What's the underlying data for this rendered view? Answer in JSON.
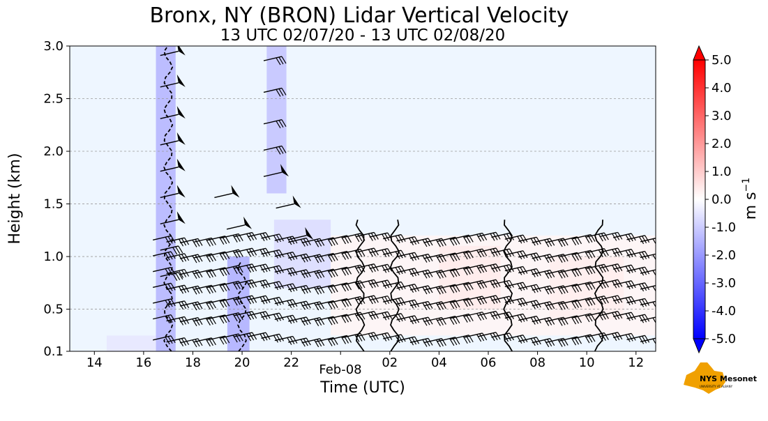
{
  "chart_data": {
    "type": "heatmap",
    "title": "Bronx, NY (BRON) Lidar Vertical Velocity",
    "subtitle": "13 UTC 02/07/20 - 13 UTC 02/08/20",
    "xlabel": "Time (UTC)",
    "ylabel": "Height (km)",
    "x_unit_hours_since_start": "hours from 13 UTC 02/07/20",
    "xlim": [
      13,
      36.8
    ],
    "ylim": [
      0.1,
      3.0
    ],
    "x_ticks": [
      {
        "value": 14,
        "label": "14"
      },
      {
        "value": 16,
        "label": "16"
      },
      {
        "value": 18,
        "label": "18"
      },
      {
        "value": 20,
        "label": "20"
      },
      {
        "value": 22,
        "label": "22"
      },
      {
        "value": 26,
        "label": "02"
      },
      {
        "value": 28,
        "label": "04"
      },
      {
        "value": 30,
        "label": "06"
      },
      {
        "value": 32,
        "label": "08"
      },
      {
        "value": 34,
        "label": "10"
      },
      {
        "value": 36,
        "label": "12"
      }
    ],
    "x_date_label": {
      "value": 24,
      "label": "Feb-08"
    },
    "y_ticks": [
      {
        "value": 0.1,
        "label": "0.1"
      },
      {
        "value": 0.5,
        "label": "0.5"
      },
      {
        "value": 1.0,
        "label": "1.0"
      },
      {
        "value": 1.5,
        "label": "1.5"
      },
      {
        "value": 2.0,
        "label": "2.0"
      },
      {
        "value": 2.5,
        "label": "2.5"
      },
      {
        "value": 3.0,
        "label": "3.0"
      }
    ],
    "grid": {
      "horizontal_dashed": true
    },
    "colorbar": {
      "label": "m s",
      "label_superscript": "−1",
      "range": [
        -5.0,
        5.0
      ],
      "extend": "both",
      "tick_labels": [
        "-5.0",
        "-4.0",
        "-3.0",
        "-2.0",
        "-1.0",
        "0.0",
        "1.0",
        "2.0",
        "3.0",
        "4.0",
        "5.0"
      ],
      "colors": {
        "min": "#0000ff",
        "zero": "#ffffff",
        "max": "#ff0000"
      }
    },
    "background_color": "#eef6ff",
    "velocity_regions": [
      {
        "x0": 16.5,
        "x1": 17.3,
        "y0": 0.1,
        "y1": 3.0,
        "value": -1.5
      },
      {
        "x0": 19.4,
        "x1": 20.3,
        "y0": 0.1,
        "y1": 1.0,
        "value": -1.6
      },
      {
        "x0": 21.0,
        "x1": 21.8,
        "y0": 1.6,
        "y1": 3.0,
        "value": -1.2
      },
      {
        "x0": 21.3,
        "x1": 23.6,
        "y0": 0.7,
        "y1": 1.35,
        "value": -0.7
      },
      {
        "x0": 14.5,
        "x1": 16.5,
        "y0": 0.1,
        "y1": 0.25,
        "value": -0.5
      },
      {
        "x0": 23.6,
        "x1": 36.8,
        "y0": 0.25,
        "y1": 1.2,
        "value": 0.2
      },
      {
        "x0": 28.0,
        "x1": 30.5,
        "y0": 0.5,
        "y1": 1.1,
        "value": 0.4
      },
      {
        "x0": 32.5,
        "x1": 35.5,
        "y0": 0.4,
        "y1": 1.0,
        "value": 0.35
      }
    ],
    "wind_barbs": [
      {
        "x": 17.3,
        "y": 2.95,
        "flag": true
      },
      {
        "x": 17.3,
        "y": 2.65,
        "flag": true
      },
      {
        "x": 17.3,
        "y": 2.35,
        "flag": true
      },
      {
        "x": 17.3,
        "y": 2.1,
        "flag": true
      },
      {
        "x": 17.3,
        "y": 1.85,
        "flag": true
      },
      {
        "x": 17.3,
        "y": 1.6,
        "flag": true
      },
      {
        "x": 17.3,
        "y": 1.35,
        "flag": true
      },
      {
        "x": 17.3,
        "y": 1.1,
        "flag": false
      },
      {
        "x": 17.3,
        "y": 0.85,
        "flag": false
      },
      {
        "x": 21.5,
        "y": 2.9,
        "flag": false
      },
      {
        "x": 21.5,
        "y": 2.6,
        "flag": false
      },
      {
        "x": 21.5,
        "y": 2.3,
        "flag": false
      },
      {
        "x": 21.5,
        "y": 2.05,
        "flag": false
      },
      {
        "x": 21.5,
        "y": 1.8,
        "flag": true
      },
      {
        "x": 19.5,
        "y": 1.6,
        "flag": true
      },
      {
        "x": 20.0,
        "y": 1.3,
        "flag": true
      },
      {
        "x": 22.0,
        "y": 1.5,
        "flag": true
      },
      {
        "x": 22.5,
        "y": 1.2,
        "flag": true
      }
    ],
    "barb_rows": [
      0.25,
      0.45,
      0.6,
      0.75,
      0.9,
      1.05,
      1.2
    ],
    "barb_row_xstart": 17.0,
    "barb_row_xend": 36.8,
    "barb_row_step": 0.55,
    "contour_columns": [
      17.0,
      20.0,
      24.8,
      26.2,
      30.8,
      34.5
    ]
  },
  "logo": {
    "text": "NYS Mesonet",
    "subtext": "UNIVERSITY AT ALBANY"
  }
}
